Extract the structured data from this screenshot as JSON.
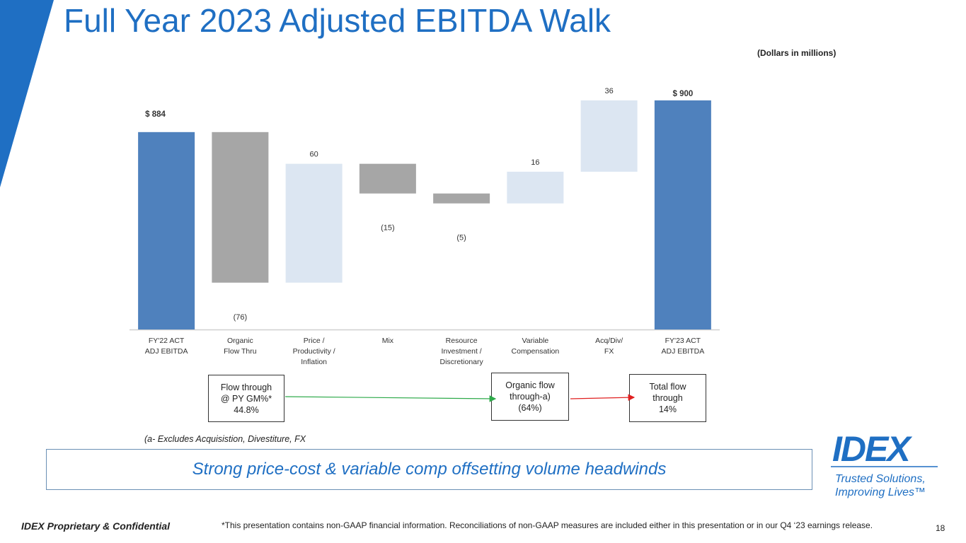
{
  "slide": {
    "title": "Full Year 2023 Adjusted EBITDA Walk",
    "units": "(Dollars in millions)",
    "footnote": "(a- Excludes Acquisistion, Divestiture, FX",
    "takeaway": "Strong price-cost & variable comp offsetting volume headwinds",
    "confidential": "IDEX Proprietary & Confidential",
    "disclaimer": "*This presentation contains non-GAAP financial information. Reconciliations of non-GAAP measures are included either in this presentation or in our Q4 ‘23 earnings release.",
    "page_number": "18",
    "logo_text": "IDEX",
    "tagline_line1": "Trusted Solutions,",
    "tagline_line2": "Improving Lives™"
  },
  "colors": {
    "accent": "#1f6fc3",
    "total_bar": "#4f81bd",
    "decrease_bar": "#a6a6a6",
    "increase_bar": "#dce6f2",
    "green_arrow": "#2eaa4a",
    "red_arrow": "#e02020"
  },
  "flow_boxes": {
    "box1": {
      "line1": "Flow through",
      "line2": "@ PY GM%*",
      "line3": "44.8%"
    },
    "box2": {
      "line1": "Organic flow",
      "line2": "through-a)",
      "line3": "(64%)"
    },
    "box3": {
      "line1": "Total flow",
      "line2": "through",
      "line3": "14%"
    }
  },
  "chart_data": {
    "type": "waterfall",
    "title": "Full Year 2023 Adjusted EBITDA Walk",
    "units": "(Dollars in millions)",
    "categories": [
      [
        "FY'22 ACT",
        "ADJ EBITDA"
      ],
      [
        "Organic",
        "Flow Thru"
      ],
      [
        "Price /",
        "Productivity /",
        "Inflation"
      ],
      [
        "Mix"
      ],
      [
        "Resource",
        "Investment /",
        "Discretionary"
      ],
      [
        "Variable",
        "Compensation"
      ],
      [
        "Acq/Div/",
        "FX"
      ],
      [
        "FY'23 ACT",
        "ADJ EBITDA"
      ]
    ],
    "steps": [
      {
        "kind": "total",
        "value": 884,
        "label": "$  884"
      },
      {
        "kind": "delta",
        "value": -76,
        "label": "(76)"
      },
      {
        "kind": "delta",
        "value": 60,
        "label": "60"
      },
      {
        "kind": "delta",
        "value": -15,
        "label": "(15)"
      },
      {
        "kind": "delta",
        "value": -5,
        "label": "(5)"
      },
      {
        "kind": "delta",
        "value": 16,
        "label": "16"
      },
      {
        "kind": "delta",
        "value": 36,
        "label": "36"
      },
      {
        "kind": "total",
        "value": 900,
        "label": "$ 900"
      }
    ],
    "ylim": [
      760,
      910
    ],
    "xlabel": "",
    "ylabel": ""
  }
}
